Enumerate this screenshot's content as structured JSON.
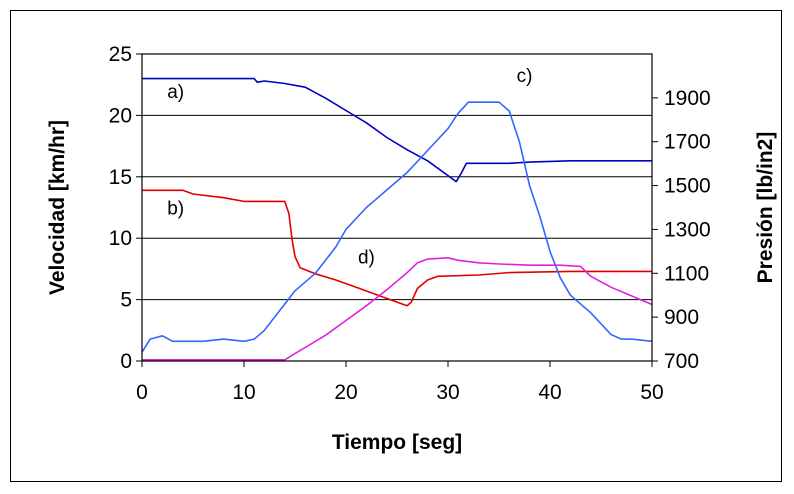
{
  "chart_data": {
    "type": "line",
    "title": "",
    "xlabel": "Tiempo [seg]",
    "ylabel": "Velocidad [km/hr]",
    "y2label": "Presión [lb/in2]",
    "xlim": [
      0,
      50
    ],
    "ylim": [
      0,
      25
    ],
    "y2lim": [
      700,
      2100
    ],
    "x_ticks": [
      "0",
      "10",
      "20",
      "30",
      "40",
      "50"
    ],
    "y_ticks": [
      "0",
      "5",
      "10",
      "15",
      "20",
      "25"
    ],
    "y2_ticks": [
      "700",
      "900",
      "1100",
      "1300",
      "1500",
      "1700",
      "1900"
    ],
    "grid": "horizontal",
    "legend": "none",
    "series": [
      {
        "name": "a)",
        "axis": "left",
        "color": "#0000c0",
        "points": [
          [
            0,
            23
          ],
          [
            10,
            23
          ],
          [
            11,
            23
          ],
          [
            11.3,
            22.7
          ],
          [
            12,
            22.8
          ],
          [
            14,
            22.6
          ],
          [
            16,
            22.3
          ],
          [
            18,
            21.4
          ],
          [
            20,
            20.4
          ],
          [
            22,
            19.4
          ],
          [
            24,
            18.2
          ],
          [
            26,
            17.2
          ],
          [
            28,
            16.3
          ],
          [
            30,
            15.1
          ],
          [
            30.8,
            14.6
          ],
          [
            31.3,
            15.3
          ],
          [
            31.8,
            16.1
          ],
          [
            34,
            16.1
          ],
          [
            36,
            16.1
          ],
          [
            38,
            16.2
          ],
          [
            42,
            16.3
          ],
          [
            50,
            16.3
          ]
        ]
      },
      {
        "name": "b)",
        "axis": "left",
        "color": "#e00000",
        "points": [
          [
            0,
            13.9
          ],
          [
            4,
            13.9
          ],
          [
            5,
            13.6
          ],
          [
            8,
            13.3
          ],
          [
            10,
            13.0
          ],
          [
            14,
            13.0
          ],
          [
            14.4,
            12.0
          ],
          [
            14.7,
            10.0
          ],
          [
            15,
            8.5
          ],
          [
            15.5,
            7.6
          ],
          [
            17,
            7.1
          ],
          [
            19,
            6.6
          ],
          [
            21,
            6.0
          ],
          [
            23,
            5.4
          ],
          [
            25,
            4.8
          ],
          [
            26,
            4.5
          ],
          [
            26.4,
            4.8
          ],
          [
            27,
            5.9
          ],
          [
            28,
            6.6
          ],
          [
            29,
            6.9
          ],
          [
            33,
            7.0
          ],
          [
            36,
            7.2
          ],
          [
            42,
            7.3
          ],
          [
            50,
            7.3
          ]
        ]
      },
      {
        "name": "c)",
        "axis": "right",
        "color": "#3366ff",
        "points": [
          [
            0,
            740
          ],
          [
            0.8,
            800
          ],
          [
            2,
            815
          ],
          [
            3,
            790
          ],
          [
            6,
            790
          ],
          [
            8,
            800
          ],
          [
            10,
            790
          ],
          [
            11,
            800
          ],
          [
            12,
            840
          ],
          [
            13,
            900
          ],
          [
            14,
            960
          ],
          [
            15,
            1020
          ],
          [
            17,
            1100
          ],
          [
            19,
            1220
          ],
          [
            20,
            1300
          ],
          [
            22,
            1400
          ],
          [
            24,
            1480
          ],
          [
            26,
            1560
          ],
          [
            28,
            1660
          ],
          [
            30,
            1760
          ],
          [
            31,
            1830
          ],
          [
            32,
            1880
          ],
          [
            34,
            1880
          ],
          [
            35,
            1880
          ],
          [
            36,
            1840
          ],
          [
            37,
            1700
          ],
          [
            38,
            1500
          ],
          [
            39,
            1360
          ],
          [
            40,
            1200
          ],
          [
            41,
            1080
          ],
          [
            42,
            1000
          ],
          [
            44,
            920
          ],
          [
            46,
            820
          ],
          [
            47,
            800
          ],
          [
            48,
            800
          ],
          [
            50,
            790
          ]
        ]
      },
      {
        "name": "d)",
        "axis": "left",
        "color": "#e020e0",
        "points": [
          [
            0,
            0.1
          ],
          [
            14,
            0.1
          ],
          [
            15,
            0.6
          ],
          [
            16,
            1.1
          ],
          [
            18,
            2.1
          ],
          [
            20,
            3.3
          ],
          [
            22,
            4.5
          ],
          [
            24,
            5.8
          ],
          [
            26,
            7.2
          ],
          [
            27,
            8.0
          ],
          [
            28,
            8.3
          ],
          [
            30,
            8.4
          ],
          [
            31,
            8.2
          ],
          [
            33,
            8.0
          ],
          [
            35,
            7.9
          ],
          [
            38,
            7.8
          ],
          [
            41,
            7.8
          ],
          [
            43,
            7.7
          ],
          [
            44,
            6.9
          ],
          [
            46,
            6.0
          ],
          [
            48,
            5.3
          ],
          [
            50,
            4.6
          ]
        ]
      }
    ],
    "annotations": [
      {
        "text": "a)",
        "x": 3.3,
        "y": 22
      },
      {
        "text": "b)",
        "x": 3.3,
        "y": 12.5
      },
      {
        "text": "c)",
        "x": 37.5,
        "y": 23.3
      },
      {
        "text": "d)",
        "x": 22,
        "y": 8.5
      }
    ]
  }
}
